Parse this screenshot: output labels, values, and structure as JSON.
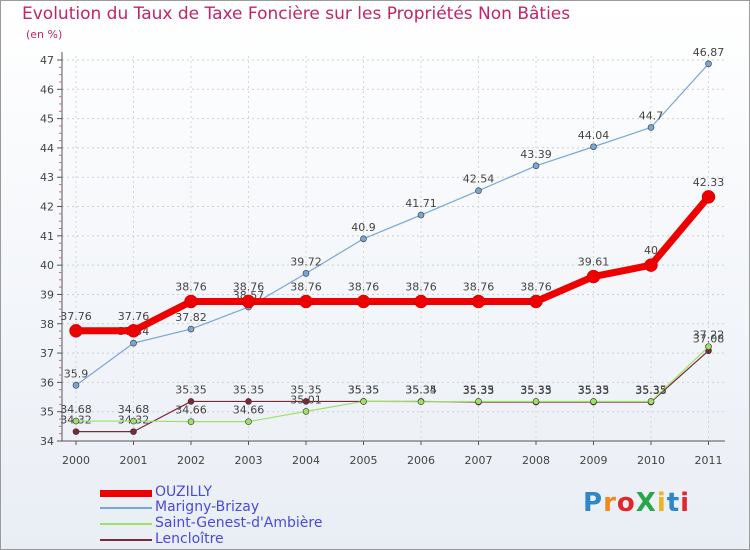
{
  "title": "Evolution du Taux de Taxe Foncière sur les Propriétés Non Bâties",
  "unit_label": "(en %)",
  "logo": {
    "text": "ProXiti",
    "colors": [
      "#2f86c8",
      "#f08a1c",
      "#e2262a",
      "#2aa54b",
      "#f0b51c",
      "#2f86c8",
      "#e2262a"
    ]
  },
  "chart_data": {
    "type": "line",
    "title": "Evolution du Taux de Taxe Foncière sur les Propriétés Non Bâties",
    "ylabel": "(en %)",
    "xlabel": "",
    "ylim": [
      34,
      47
    ],
    "yticks": [
      34,
      35,
      36,
      37,
      38,
      39,
      40,
      41,
      42,
      43,
      44,
      45,
      46,
      47
    ],
    "categories": [
      "2000",
      "2001",
      "2002",
      "2003",
      "2004",
      "2005",
      "2006",
      "2007",
      "2008",
      "2009",
      "2010",
      "2011"
    ],
    "series": [
      {
        "name": "OUZILLY",
        "color": "#ee0000",
        "values": [
          37.76,
          37.76,
          38.76,
          38.76,
          38.76,
          38.76,
          38.76,
          38.76,
          38.76,
          39.61,
          40,
          42.33
        ],
        "labels": [
          "37.76",
          "37.76",
          "38.76",
          "38.76",
          "38.76",
          "38.76",
          "38.76",
          "38.76",
          "38.76",
          "39.61",
          "40",
          "42.33"
        ]
      },
      {
        "name": "Marigny-Brizay",
        "color": "#79a6d8",
        "values": [
          35.9,
          37.34,
          37.82,
          38.57,
          39.72,
          40.9,
          41.71,
          42.54,
          43.39,
          44.04,
          44.7,
          46.87
        ],
        "labels": [
          "35.9",
          "37.34",
          "37.82",
          "38.57",
          "39.72",
          "40.9",
          "41.71",
          "42.54",
          "43.39",
          "44.04",
          "44.7",
          "46.87"
        ]
      },
      {
        "name": "Saint-Genest-d'Ambière",
        "color": "#9ee06a",
        "values": [
          34.68,
          34.68,
          34.66,
          34.66,
          35.01,
          35.35,
          35.34,
          35.35,
          35.35,
          35.35,
          35.35,
          37.22
        ],
        "labels": [
          "34.68",
          "34.68",
          "34.66",
          "34.66",
          "35.01",
          "35.35",
          "35.34",
          "35.35",
          "35.35",
          "35.35",
          "35.35",
          "37.22"
        ]
      },
      {
        "name": "Lencloître",
        "color": "#7a2a36",
        "values": [
          34.32,
          34.32,
          35.35,
          35.35,
          35.35,
          35.35,
          35.35,
          35.33,
          35.33,
          35.33,
          35.33,
          37.08
        ],
        "labels": [
          "34.32",
          "34.32",
          "35.35",
          "35.35",
          "35.35",
          "35.35",
          "35.35",
          "35.33",
          "35.33",
          "35.33",
          "35.33",
          "37.08"
        ]
      }
    ]
  }
}
